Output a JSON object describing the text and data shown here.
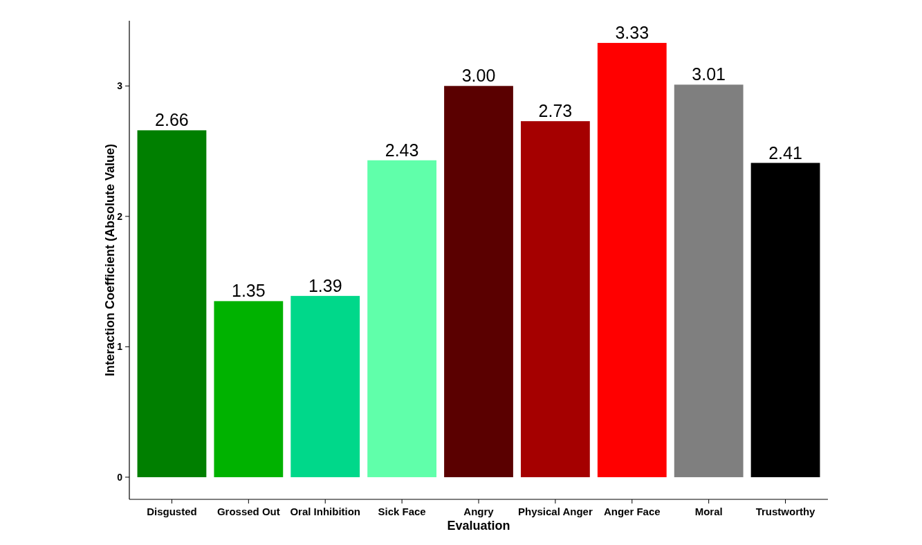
{
  "chart_data": {
    "type": "bar",
    "xlabel": "Evaluation",
    "ylabel": "Interaction Coefficient (Absolute Value)",
    "categories": [
      "Disgusted",
      "Grossed Out",
      "Oral Inhibition",
      "Sick Face",
      "Angry",
      "Physical Anger",
      "Anger Face",
      "Moral",
      "Trustworthy"
    ],
    "values": [
      2.66,
      1.35,
      1.39,
      2.43,
      3.0,
      2.73,
      3.33,
      3.01,
      2.41
    ],
    "colors": [
      "#007f00",
      "#00b200",
      "#00d88a",
      "#60ffaa",
      "#5a0000",
      "#a50000",
      "#ff0000",
      "#7f7f7f",
      "#000000"
    ],
    "value_labels": [
      "2.66",
      "1.35",
      "1.39",
      "2.43",
      "3.00",
      "2.73",
      "3.33",
      "3.01",
      "2.41"
    ],
    "ylim": [
      -0.17,
      3.5
    ],
    "yticks": [
      0,
      1,
      2,
      3
    ],
    "grid": false
  }
}
